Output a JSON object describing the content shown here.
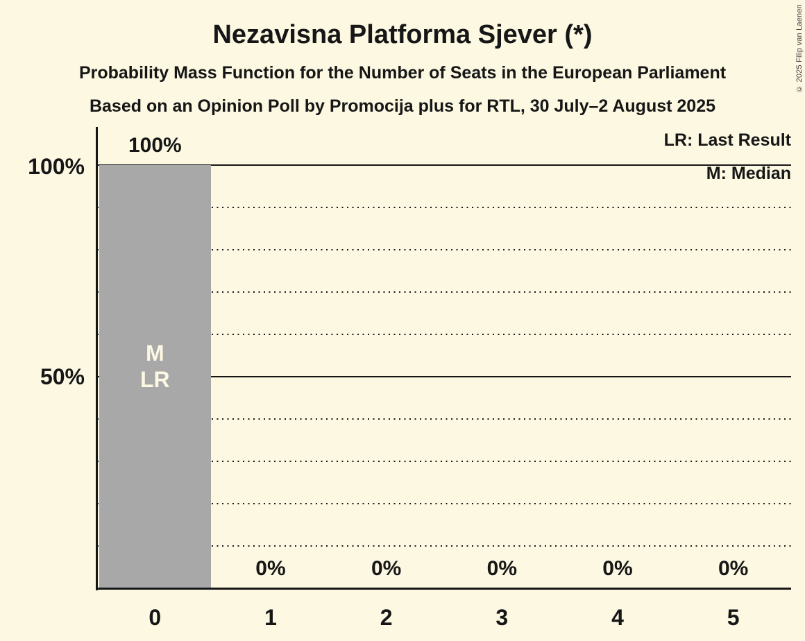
{
  "header": {
    "title": "Nezavisna Platforma Sjever (*)",
    "subtitle1": "Probability Mass Function for the Number of Seats in the European Parliament",
    "subtitle2": "Based on an Opinion Poll by Promocija plus for RTL, 30 July–2 August 2025"
  },
  "copyright": "© 2025 Filip van Laenen",
  "legend": {
    "last_result": "LR: Last Result",
    "median": "M: Median"
  },
  "y_axis_labels": [
    "100%",
    "50%"
  ],
  "annotations": {
    "median": "M",
    "last_result": "LR"
  },
  "chart_data": {
    "type": "bar",
    "categories": [
      "0",
      "1",
      "2",
      "3",
      "4",
      "5"
    ],
    "values": [
      100,
      0,
      0,
      0,
      0,
      0
    ],
    "value_labels": [
      "100%",
      "0%",
      "0%",
      "0%",
      "0%",
      "0%"
    ],
    "title": "Nezavisna Platforma Sjever (*)",
    "xlabel": "",
    "ylabel": "",
    "ylim": [
      0,
      100
    ],
    "gridlines": {
      "solid_pct": [
        100,
        50
      ],
      "dotted_pct": [
        90,
        80,
        70,
        60,
        40,
        30,
        20,
        10
      ]
    },
    "legend_position": "top-right",
    "median_category_index": 0,
    "last_result_category_index": 0,
    "colors": {
      "background": "#fcf8e2",
      "bar": "#a8a8a8",
      "text": "#161616",
      "bar_label": "#fcf8e2"
    }
  }
}
